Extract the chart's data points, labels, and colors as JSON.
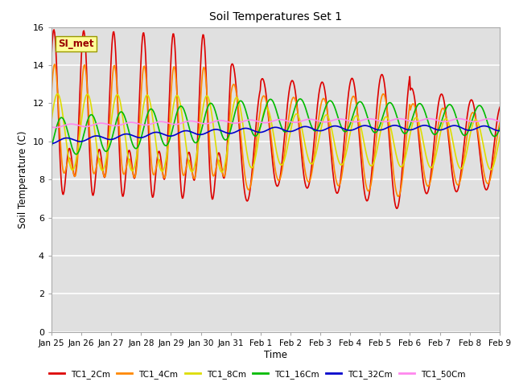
{
  "title": "Soil Temperatures Set 1",
  "xlabel": "Time",
  "ylabel": "Soil Temperature (C)",
  "ylim": [
    0,
    16
  ],
  "yticks": [
    0,
    2,
    4,
    6,
    8,
    10,
    12,
    14,
    16
  ],
  "xtick_labels": [
    "Jan 25",
    "Jan 26",
    "Jan 27",
    "Jan 28",
    "Jan 29",
    "Jan 30",
    "Jan 31",
    "Feb 1",
    "Feb 2",
    "Feb 3",
    "Feb 4",
    "Feb 5",
    "Feb 6",
    "Feb 7",
    "Feb 8",
    "Feb 9"
  ],
  "annotation_text": "SI_met",
  "annotation_bg": "#ffff99",
  "annotation_text_color": "#990000",
  "bg_color": "#e0e0e0",
  "lines": [
    {
      "label": "TC1_2Cm",
      "color": "#dd0000",
      "lw": 1.2
    },
    {
      "label": "TC1_4Cm",
      "color": "#ff8800",
      "lw": 1.2
    },
    {
      "label": "TC1_8Cm",
      "color": "#dddd00",
      "lw": 1.2
    },
    {
      "label": "TC1_16Cm",
      "color": "#00bb00",
      "lw": 1.2
    },
    {
      "label": "TC1_32Cm",
      "color": "#0000cc",
      "lw": 1.2
    },
    {
      "label": "TC1_50Cm",
      "color": "#ff88ee",
      "lw": 1.2
    }
  ]
}
